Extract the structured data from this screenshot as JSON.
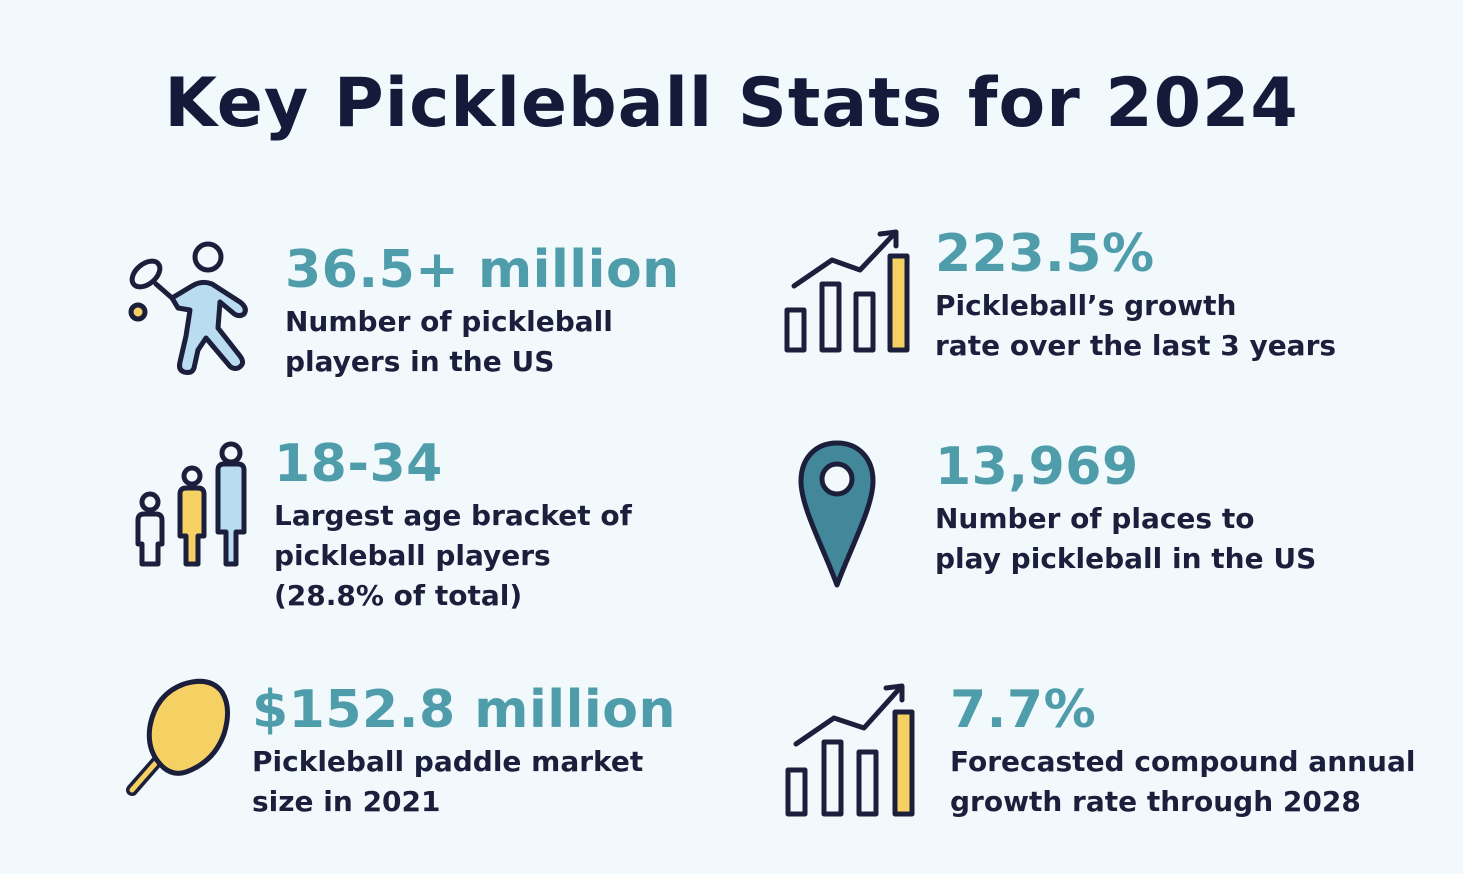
{
  "title": "Key Pickleball Stats for 2024",
  "colors": {
    "background": "#f2f9fc",
    "title": "#151a3a",
    "accent_teal": "#4f9daa",
    "text_dark": "#1b1f3b",
    "icon_light_blue": "#b9dcf0",
    "icon_yellow": "#f5d063",
    "pin_teal": "#43889a"
  },
  "stats": [
    {
      "icon": "pickleball-player-icon",
      "value": "36.5+ million",
      "desc": [
        "Number of pickleball",
        "players in the US"
      ]
    },
    {
      "icon": "growth-chart-icon",
      "value": "223.5%",
      "desc": [
        "Pickleball’s growth",
        "rate over the last 3 years"
      ]
    },
    {
      "icon": "age-group-people-icon",
      "value": "18-34",
      "desc": [
        "Largest age bracket of",
        "pickleball players",
        "(28.8% of total)"
      ]
    },
    {
      "icon": "location-pin-icon",
      "value": "13,969",
      "desc": [
        "Number of places to",
        "play pickleball in the US"
      ]
    },
    {
      "icon": "paddle-icon",
      "value": "$152.8 million",
      "desc": [
        "Pickleball paddle market",
        "size in 2021"
      ]
    },
    {
      "icon": "growth-chart-icon",
      "value": "7.7%",
      "desc": [
        "Forecasted compound annual",
        "growth rate through 2028"
      ]
    }
  ]
}
